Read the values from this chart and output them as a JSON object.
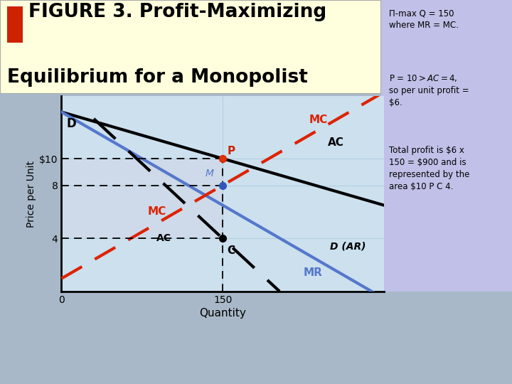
{
  "title_line1": "FIGURE 3. Profit-Maximizing",
  "title_line2": "Equilibrium for a Monopolist",
  "title_bg": "#ffffdd",
  "title_square_color": "#cc2200",
  "chart_bg_color": "#cce0ee",
  "grid_color": "#aaccdd",
  "outer_bg": "#a8b8c8",
  "right_box_color": "#c0c0e8",
  "xlabel": "Quantity",
  "ylabel": "Price per Unit",
  "xlim": [
    0,
    300
  ],
  "ylim": [
    0,
    14
  ],
  "q_star": 150,
  "p_star": 10,
  "ac_star": 4,
  "mc_star": 8,
  "D_y0": 13.5,
  "D_x_end": 290,
  "MR_y0": 13.5,
  "MR_x_end": 290,
  "MC_x0": 0,
  "MC_y0": 1,
  "MC_x1": 290,
  "MC_y1": 13.5,
  "AC_x0": 30,
  "AC_y0": 13.0,
  "AC_x1": 290,
  "AC_y1": 5.5,
  "D_color": "#000000",
  "MR_color": "#5577cc",
  "MC_color": "#dd2200",
  "AC_color": "#000000",
  "profit_fill_color": "#d0d8e8",
  "profit_fill_alpha": 0.7,
  "annotation_pi_max": "Π-max Q = 150\nwhere MR = MC.",
  "annotation_p": "P = $10 > AC = $4,\nso per unit profit =\n$6.",
  "annotation_profit": "Total profit is $6 x\n150 = $900 and is\nrepresented by the\narea $10 P C 4.",
  "label_D": "D",
  "label_MC_top": "MC",
  "label_AC_top": "AC",
  "label_MR": "MR",
  "label_D_AR": "D (AR)",
  "label_MC_mid": "MC",
  "label_AC_mid": "AC",
  "point_P": "P",
  "point_M": "M",
  "point_C": "C"
}
